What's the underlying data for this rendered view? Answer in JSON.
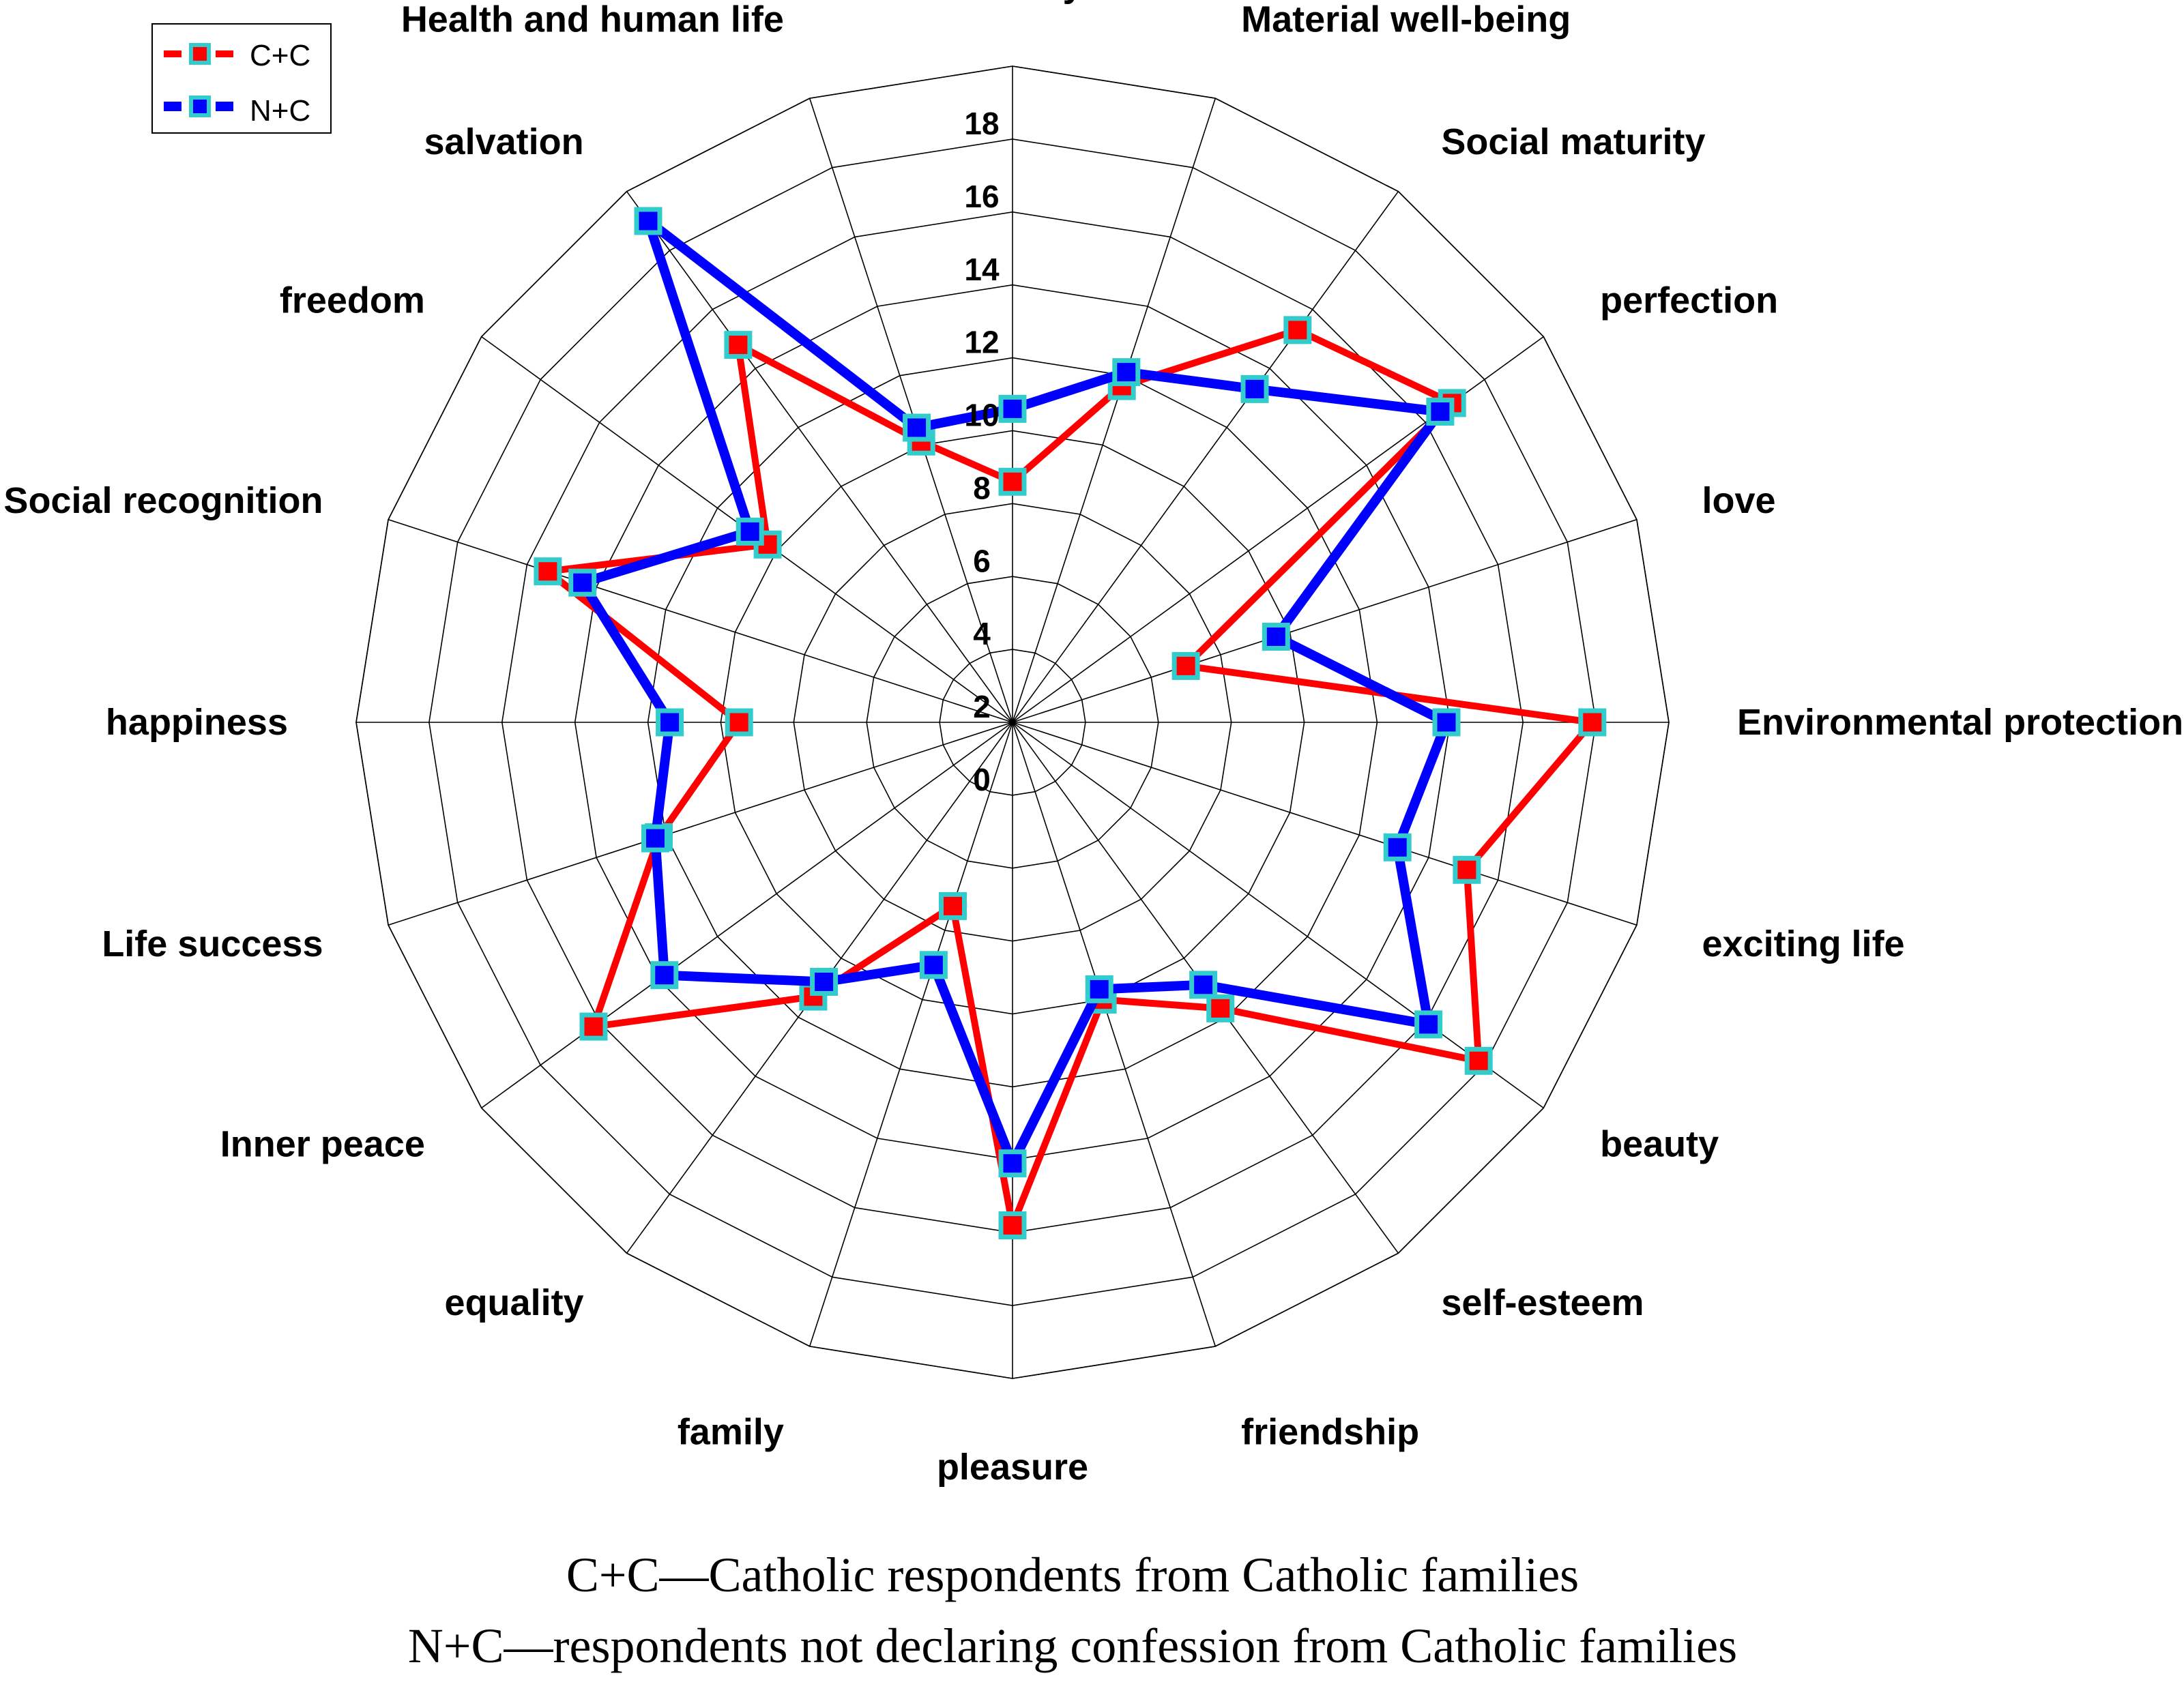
{
  "chart_data": {
    "type": "radar",
    "title": "",
    "axes": [
      "security",
      "Material well-being",
      "Social maturity",
      "perfection",
      "love",
      "Environmental protection",
      "exciting life",
      "beauty",
      "self-esteem",
      "friendship",
      "pleasure",
      "family",
      "equality",
      "Inner peace",
      "Life success",
      "happiness",
      "Social recognition",
      "freedom",
      "salvation",
      "Health and human life"
    ],
    "radial_ticks": [
      "0",
      "2",
      "4",
      "6",
      "8",
      "10",
      "12",
      "14",
      "16",
      "18"
    ],
    "rlim": [
      0,
      18
    ],
    "grid": true,
    "legend_position": "top-left",
    "series": [
      {
        "name": "C+C",
        "color": "#ff0000",
        "marker_fill": "#ff0000",
        "marker_edge": "#33cccc",
        "values": [
          6.6,
          9.7,
          13.3,
          14.9,
          5.0,
          15.9,
          13.1,
          15.8,
          9.7,
          8.0,
          13.8,
          5.3,
          9.3,
          14.2,
          10.2,
          7.5,
          13.4,
          8.3,
          12.8,
          8.1
        ]
      },
      {
        "name": "N+C",
        "color": "#0000ff",
        "marker_fill": "#0000ff",
        "marker_edge": "#33cccc",
        "values": [
          8.6,
          10.1,
          11.3,
          14.5,
          7.6,
          11.9,
          11.1,
          14.1,
          8.9,
          7.7,
          12.1,
          7.0,
          8.8,
          11.8,
          10.3,
          9.4,
          12.4,
          8.9,
          17.0,
          8.5
        ]
      }
    ],
    "captions": [
      "C+C—Catholic respondents from Catholic families",
      "N+C—respondents not declaring confession from Catholic families"
    ]
  }
}
